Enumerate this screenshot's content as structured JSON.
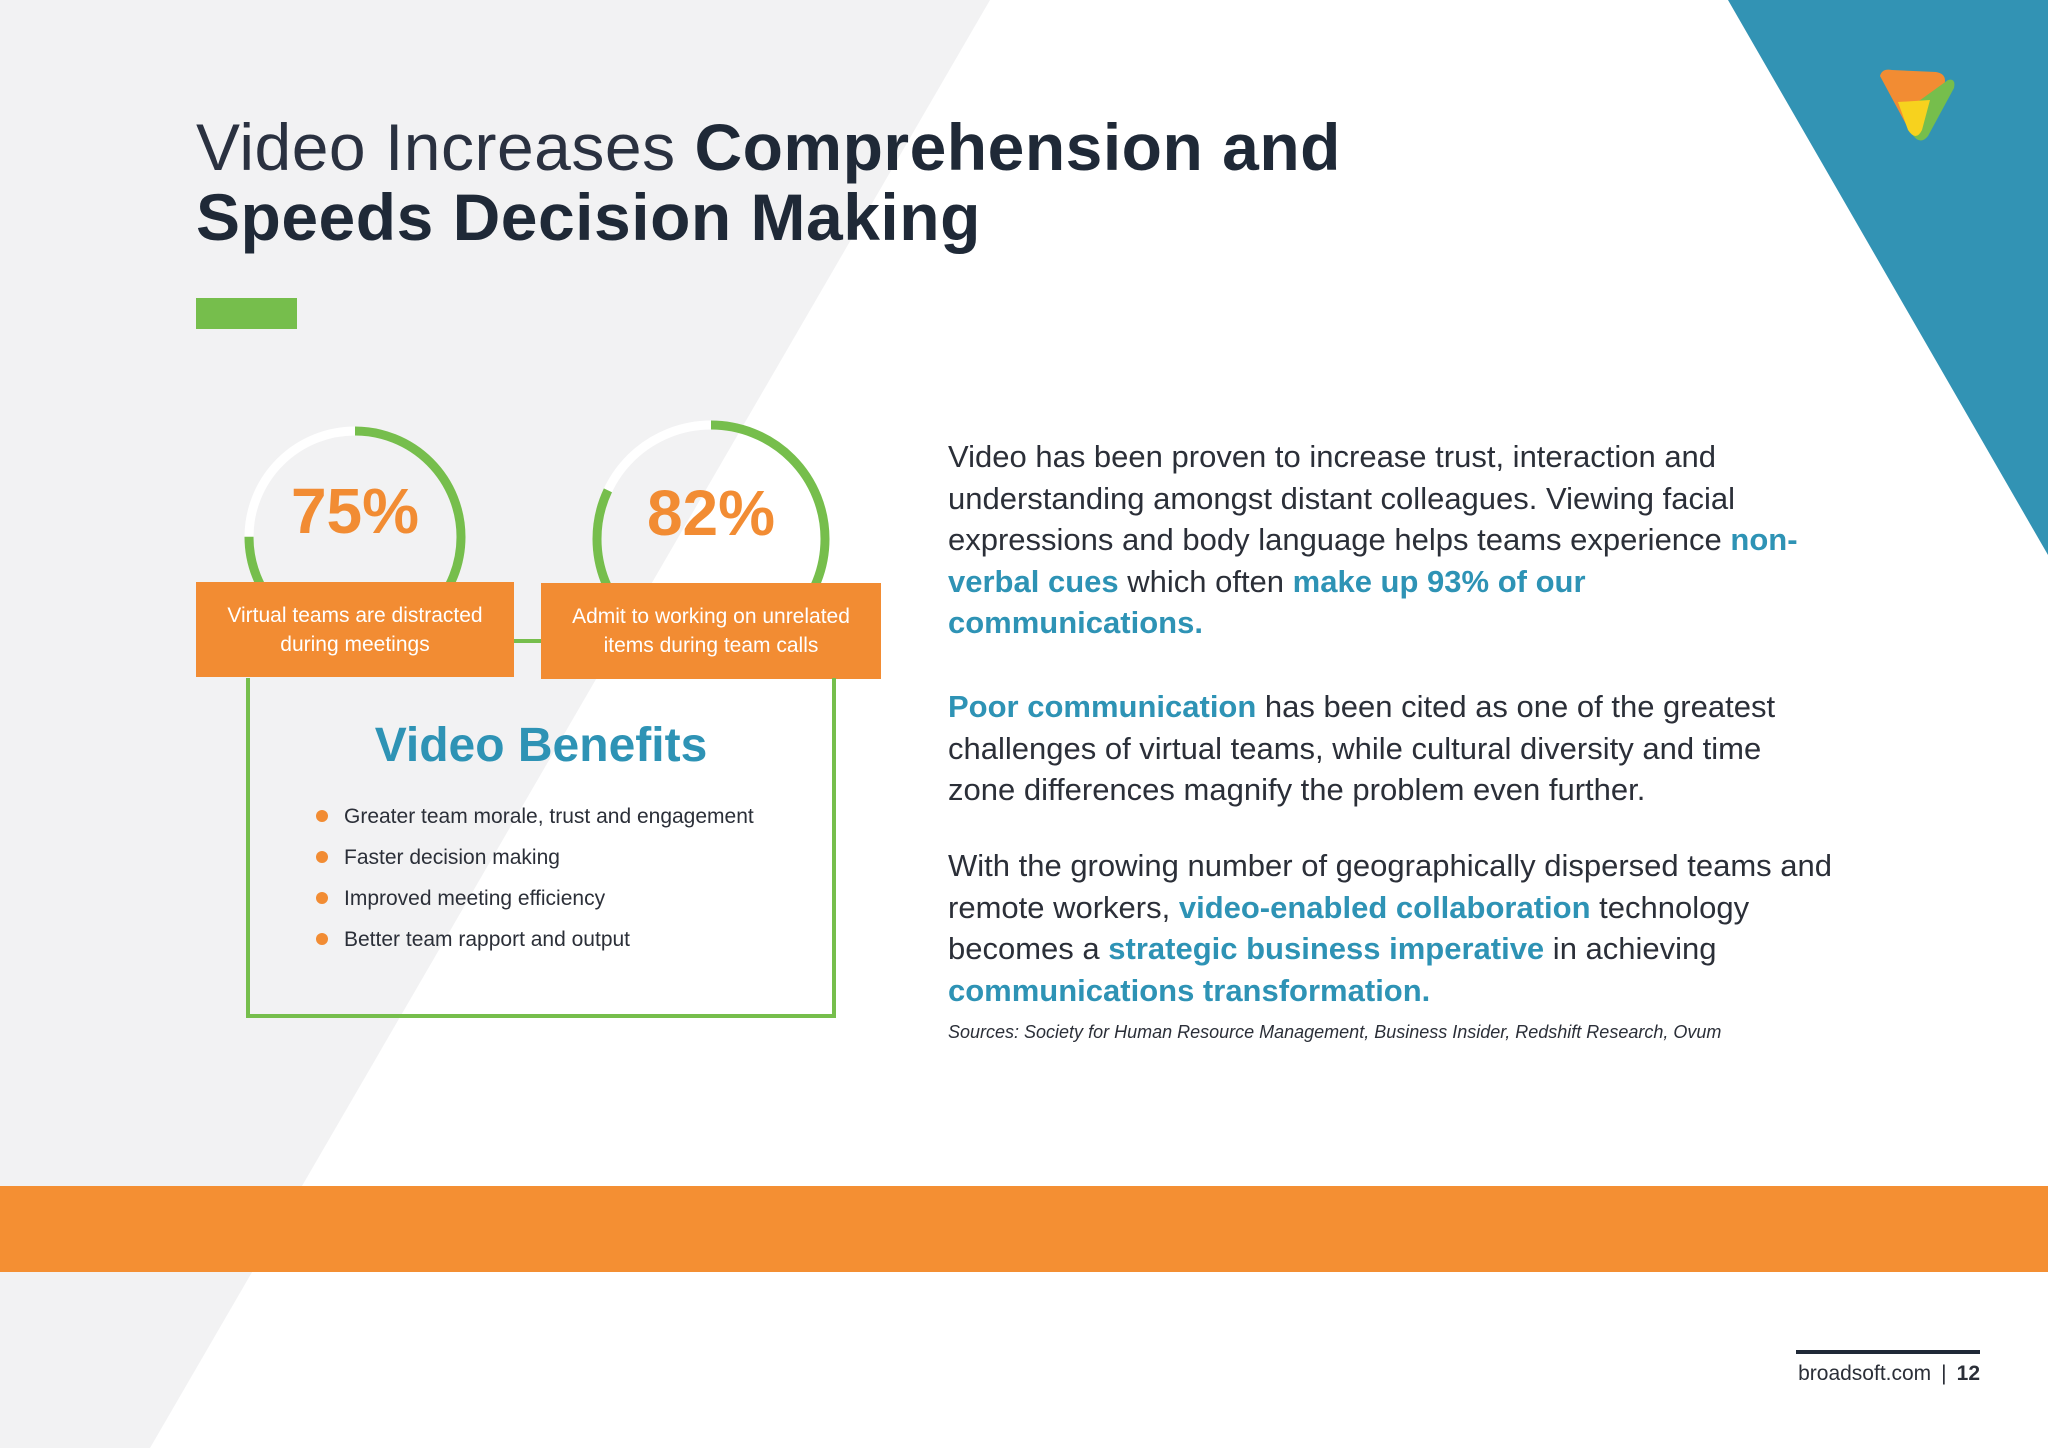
{
  "title": {
    "light": "Video Increases ",
    "bold_line1": "Comprehension and",
    "bold_line2": "Speeds Decision Making"
  },
  "colors": {
    "orange": "#f28c33",
    "green": "#76be4c",
    "teal": "#2e93b5",
    "band": "#f48f33",
    "corner": "#3293b4"
  },
  "logo_icon": "broadsoft-logo-icon",
  "stats": [
    {
      "value": "75%",
      "fraction": 0.75,
      "label_line1": "Virtual teams are distracted",
      "label_line2": "during meetings"
    },
    {
      "value": "82%",
      "fraction": 0.82,
      "label_line1": "Admit to working on unrelated",
      "label_line2": "items during team calls"
    }
  ],
  "benefits": {
    "title": "Video Benefits",
    "items": [
      "Greater team morale, trust and engagement",
      "Faster decision making",
      "Improved meeting efficiency",
      "Better team rapport and output"
    ]
  },
  "paragraphs": {
    "p1_a": "Video has been proven to increase trust, interaction and understanding amongst distant colleagues. Viewing facial expressions and body language helps teams experience ",
    "p1_hl1": "non-verbal cues",
    "p1_b": " which often ",
    "p1_hl2": "make up 93% of our communications.",
    "p2_hl1": "Poor communication",
    "p2_a": " has been cited as one of the greatest challenges of virtual teams, while cultural diversity and time zone differences magnify the problem even further.",
    "p3_a": "With the growing number of geographically dispersed teams and remote workers, ",
    "p3_hl1": "video-enabled collaboration",
    "p3_b": " technology becomes a ",
    "p3_hl2": "strategic business imperative",
    "p3_c": " in achieving ",
    "p3_hl3": "communications transformation."
  },
  "sources": "Sources: Society for Human Resource Management, Business Insider, Redshift Research, Ovum",
  "footer": {
    "site": "broadsoft.com",
    "separator": "|",
    "page": "12"
  }
}
